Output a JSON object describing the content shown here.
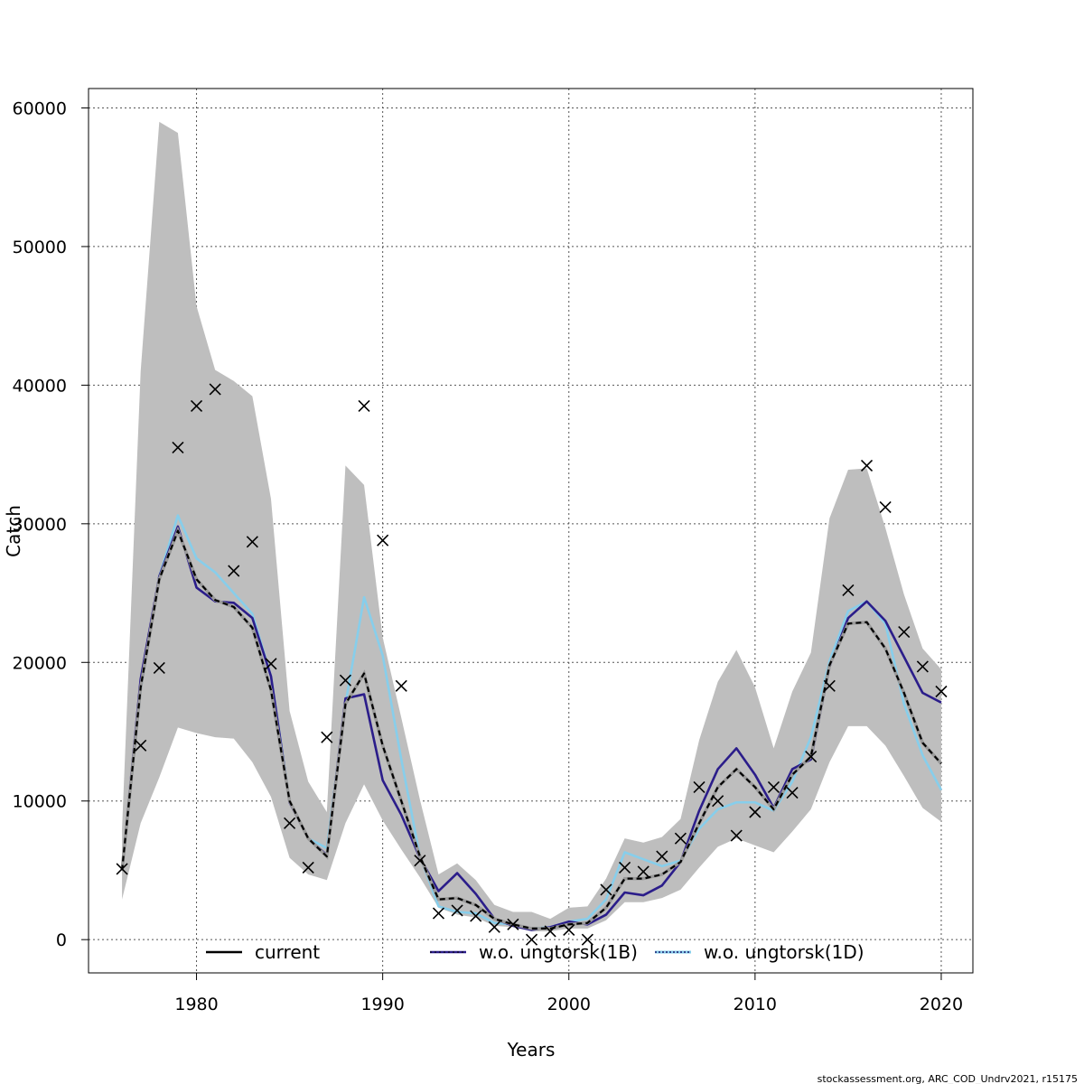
{
  "chart_data": {
    "type": "line",
    "title": "",
    "xlabel": "Years",
    "ylabel": "Catch",
    "xlim": [
      1974.2,
      2021.7
    ],
    "ylim": [
      -2400,
      61400
    ],
    "x_ticks": [
      1980,
      1990,
      2000,
      2010,
      2020
    ],
    "y_ticks": [
      0,
      10000,
      20000,
      30000,
      40000,
      50000,
      60000
    ],
    "x_tick_labels": [
      "1980",
      "1990",
      "2000",
      "2010",
      "2020"
    ],
    "y_tick_labels": [
      "0",
      "10000",
      "20000",
      "30000",
      "40000",
      "50000",
      "60000"
    ],
    "grid": true,
    "years": [
      1976,
      1977,
      1978,
      1979,
      1980,
      1981,
      1982,
      1983,
      1984,
      1985,
      1986,
      1987,
      1988,
      1989,
      1990,
      1991,
      1992,
      1993,
      1994,
      1995,
      1996,
      1997,
      1998,
      1999,
      2000,
      2001,
      2002,
      2003,
      2004,
      2005,
      2006,
      2007,
      2008,
      2009,
      2010,
      2011,
      2012,
      2013,
      2014,
      2015,
      2016,
      2017,
      2018,
      2019,
      2020
    ],
    "band": {
      "name": "confidence interval",
      "color": "#bebebe",
      "upper": [
        8000,
        41000,
        59000,
        58200,
        45700,
        41100,
        40300,
        39200,
        31800,
        16500,
        11400,
        9200,
        34200,
        32800,
        21800,
        16000,
        10100,
        4700,
        5500,
        4300,
        2500,
        2000,
        2000,
        1500,
        2300,
        2400,
        4400,
        7300,
        7000,
        7400,
        8700,
        14400,
        18600,
        20900,
        18200,
        13800,
        17900,
        20700,
        30400,
        33900,
        34000,
        29700,
        24900,
        21000,
        19500
      ],
      "lower": [
        2900,
        8400,
        11700,
        15300,
        14900,
        14600,
        14500,
        12800,
        10300,
        5900,
        4700,
        4300,
        8400,
        11200,
        8600,
        6500,
        4500,
        2300,
        1800,
        1600,
        1000,
        900,
        600,
        600,
        800,
        800,
        1400,
        2700,
        2700,
        3000,
        3600,
        5200,
        6700,
        7300,
        6800,
        6300,
        7800,
        9400,
        12800,
        15400,
        15400,
        14000,
        11800,
        9500,
        8500
      ]
    },
    "series": [
      {
        "name": "current",
        "legend_label": "current",
        "color": "#000000",
        "dash": "6,4",
        "values": [
          5000,
          18200,
          26000,
          29500,
          26000,
          24500,
          24000,
          22500,
          18000,
          10000,
          7300,
          6000,
          17000,
          19200,
          14000,
          10000,
          6000,
          2900,
          3000,
          2500,
          1500,
          1100,
          800,
          800,
          1100,
          1200,
          2300,
          4400,
          4400,
          4700,
          5600,
          8400,
          11000,
          12300,
          11000,
          9400,
          11900,
          13200,
          19800,
          22800,
          22900,
          21000,
          17800,
          14200,
          12700
        ]
      },
      {
        "name": "w.o. ungtorsk(1B)",
        "legend_label": "w.o. ungtorsk(1B)",
        "color": "#2b1d8a",
        "dash": "",
        "values": [
          5000,
          18800,
          26200,
          29800,
          25400,
          24400,
          24300,
          23200,
          19000,
          9900,
          7300,
          6100,
          17400,
          17700,
          11500,
          9000,
          5900,
          3500,
          4800,
          3300,
          1500,
          1000,
          700,
          900,
          1300,
          1100,
          1800,
          3400,
          3200,
          3900,
          5600,
          9300,
          12300,
          13800,
          11900,
          9500,
          12300,
          13000,
          19700,
          23200,
          24400,
          23000,
          20400,
          17800,
          17100
        ]
      },
      {
        "name": "w.o. ungtorsk(1D)",
        "legend_label": "w.o. ungtorsk(1D)",
        "color": "#87ceeb",
        "dash": "",
        "values": [
          5000,
          18000,
          26200,
          30600,
          27500,
          26500,
          25000,
          23500,
          19000,
          10000,
          7300,
          6600,
          17000,
          24700,
          20500,
          13000,
          6000,
          2400,
          2000,
          1900,
          1200,
          1100,
          800,
          900,
          1300,
          1500,
          2900,
          6300,
          5800,
          5300,
          5700,
          8000,
          9400,
          9900,
          9900,
          9300,
          11400,
          14600,
          20100,
          23700,
          24400,
          22800,
          17000,
          13300,
          10800
        ]
      }
    ],
    "observations": {
      "name": "observed catch",
      "marker": "x",
      "values": [
        5100,
        14000,
        19600,
        35500,
        38500,
        39700,
        26600,
        28700,
        19900,
        8400,
        5200,
        14600,
        18700,
        38500,
        28800,
        18300,
        5700,
        1900,
        2100,
        1700,
        900,
        1100,
        0,
        600,
        700,
        0,
        3600,
        5200,
        4900,
        6000,
        7300,
        11000,
        10000,
        7500,
        9200,
        11000,
        10600,
        13200,
        18300,
        25200,
        34200,
        31200,
        22200,
        19700,
        17900
      ]
    },
    "legend_position": "bottom-center",
    "footer": "stockassessment.org, ARC_COD_Undrv2021, r15175"
  }
}
